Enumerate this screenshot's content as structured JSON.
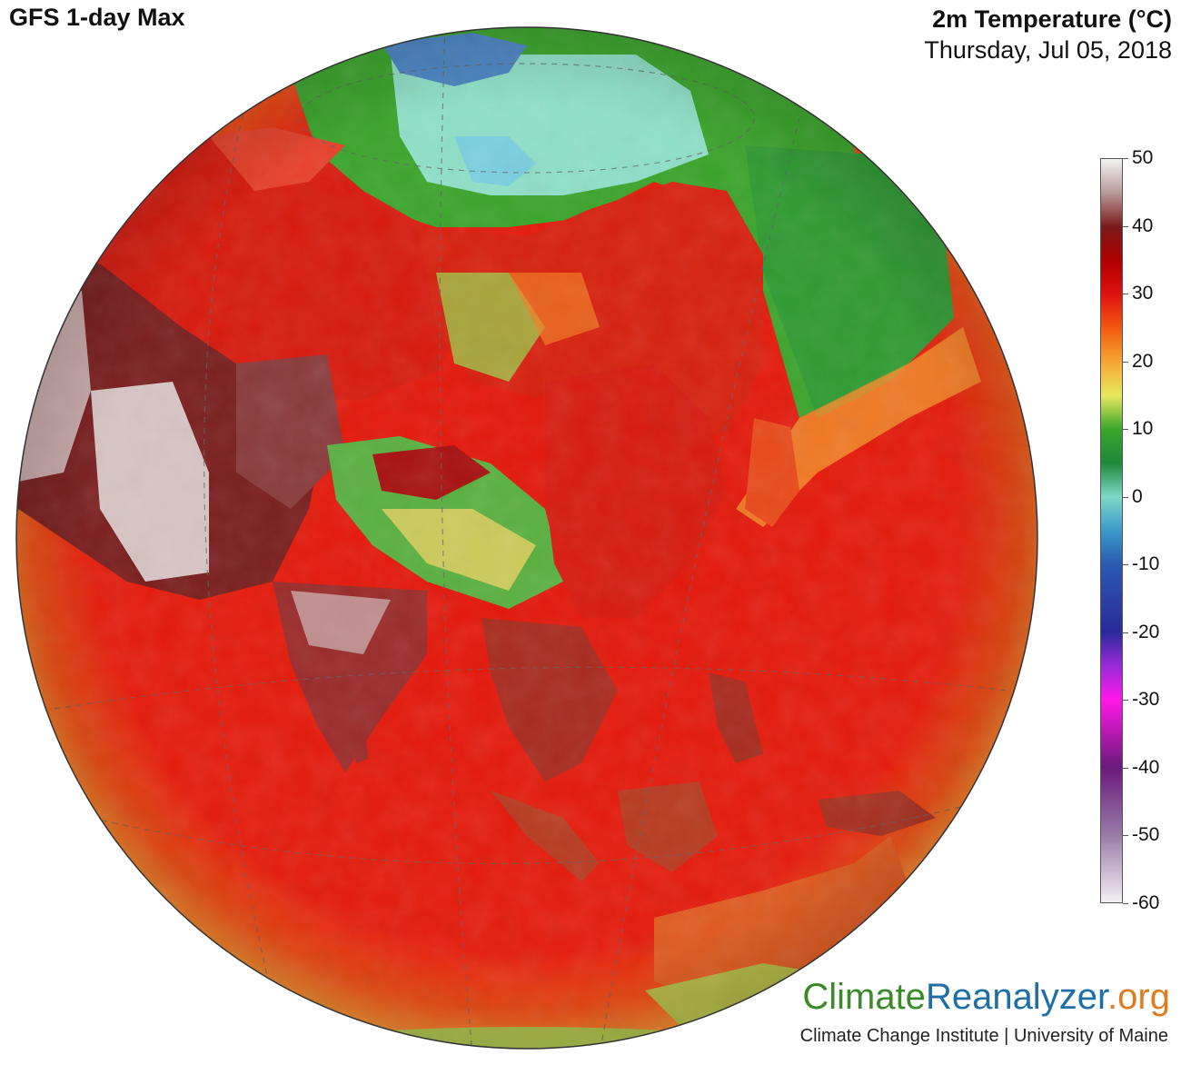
{
  "header": {
    "left_title": "GFS 1-day Max",
    "variable": "2m Temperature (°C)",
    "date": "Thursday, Jul 05, 2018"
  },
  "colorbar": {
    "labels": [
      "50",
      "40",
      "30",
      "20",
      "10",
      "0",
      "-10",
      "-20",
      "-30",
      "-40",
      "-50",
      "-60"
    ],
    "stops": [
      {
        "value": 50,
        "color": "#f4f2f2"
      },
      {
        "value": 45,
        "color": "#b89a9a"
      },
      {
        "value": 40,
        "color": "#7a1a1a"
      },
      {
        "value": 35,
        "color": "#b00000"
      },
      {
        "value": 30,
        "color": "#e01010"
      },
      {
        "value": 25,
        "color": "#f25a10"
      },
      {
        "value": 20,
        "color": "#f7a534"
      },
      {
        "value": 15,
        "color": "#e8e860"
      },
      {
        "value": 10,
        "color": "#3aa52a"
      },
      {
        "value": 5,
        "color": "#1f8a3a"
      },
      {
        "value": 0,
        "color": "#7fd8c8"
      },
      {
        "value": -5,
        "color": "#3a9ac8"
      },
      {
        "value": -10,
        "color": "#2a5ab0"
      },
      {
        "value": -20,
        "color": "#2a2a9a"
      },
      {
        "value": -25,
        "color": "#9a2ad8"
      },
      {
        "value": -30,
        "color": "#ff18e8"
      },
      {
        "value": -40,
        "color": "#6a1a7a"
      },
      {
        "value": -50,
        "color": "#9a7aa8"
      },
      {
        "value": -60,
        "color": "#f4f0f4"
      }
    ]
  },
  "brand": {
    "part1": "Climate",
    "part2": "Reanalyzer",
    "part3": ".org",
    "subtitle": "Climate Change Institute | University of Maine"
  },
  "colors": {
    "ocean_warm": "#e41a0a",
    "ocean_edge": "#f57a1a",
    "arctic_green": "#3aa52a",
    "arctic_ice": "#8fe0c8",
    "greenland": "#4a86c4",
    "hot_land": "#7a1e1e",
    "very_hot": "#d8c8c8"
  }
}
